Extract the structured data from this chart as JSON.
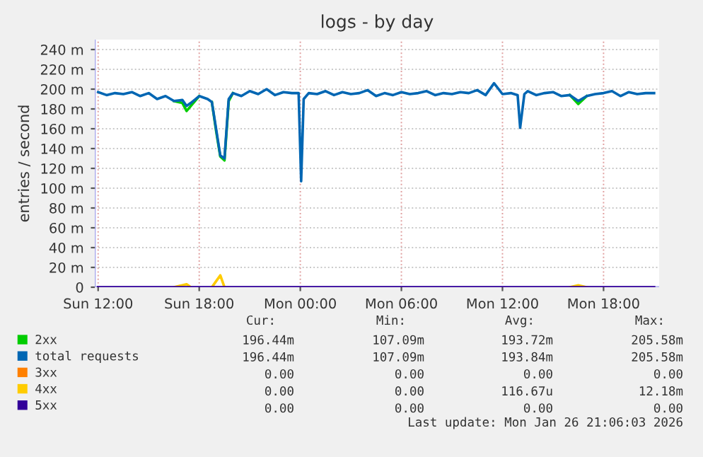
{
  "chart_data": {
    "type": "line",
    "title": "logs - by day",
    "ylabel": "entries / second",
    "x": [
      "2026-01-25T12:00",
      "2026-01-25T12:30",
      "2026-01-25T13:00",
      "2026-01-25T13:30",
      "2026-01-25T14:00",
      "2026-01-25T14:30",
      "2026-01-25T15:00",
      "2026-01-25T15:30",
      "2026-01-25T16:00",
      "2026-01-25T16:30",
      "2026-01-25T17:00",
      "2026-01-25T17:15",
      "2026-01-25T17:30",
      "2026-01-25T18:00",
      "2026-01-25T18:30",
      "2026-01-25T18:45",
      "2026-01-25T19:00",
      "2026-01-25T19:15",
      "2026-01-25T19:30",
      "2026-01-25T19:45",
      "2026-01-25T20:00",
      "2026-01-25T20:30",
      "2026-01-25T21:00",
      "2026-01-25T21:30",
      "2026-01-25T22:00",
      "2026-01-25T22:30",
      "2026-01-25T23:00",
      "2026-01-25T23:30",
      "2026-01-25T23:54",
      "2026-01-26T00:03",
      "2026-01-26T00:12",
      "2026-01-26T00:30",
      "2026-01-26T01:00",
      "2026-01-26T01:30",
      "2026-01-26T02:00",
      "2026-01-26T02:30",
      "2026-01-26T03:00",
      "2026-01-26T03:30",
      "2026-01-26T04:00",
      "2026-01-26T04:30",
      "2026-01-26T05:00",
      "2026-01-26T05:30",
      "2026-01-26T06:00",
      "2026-01-26T06:30",
      "2026-01-26T07:00",
      "2026-01-26T07:30",
      "2026-01-26T08:00",
      "2026-01-26T08:30",
      "2026-01-26T09:00",
      "2026-01-26T09:30",
      "2026-01-26T10:00",
      "2026-01-26T10:30",
      "2026-01-26T11:00",
      "2026-01-26T11:30",
      "2026-01-26T12:00",
      "2026-01-26T12:30",
      "2026-01-26T12:54",
      "2026-01-26T13:03",
      "2026-01-26T13:18",
      "2026-01-26T13:30",
      "2026-01-26T14:00",
      "2026-01-26T14:30",
      "2026-01-26T15:00",
      "2026-01-26T15:30",
      "2026-01-26T16:00",
      "2026-01-26T16:30",
      "2026-01-26T17:00",
      "2026-01-26T17:30",
      "2026-01-26T18:00",
      "2026-01-26T18:30",
      "2026-01-26T19:00",
      "2026-01-26T19:30",
      "2026-01-26T20:00",
      "2026-01-26T20:30",
      "2026-01-26T21:00"
    ],
    "series": [
      {
        "name": "2xx",
        "color": "#00cc00",
        "values": [
          null,
          null,
          null,
          null,
          null,
          null,
          null,
          null,
          null,
          188,
          186,
          178,
          183,
          193,
          null,
          187,
          158,
          132,
          128,
          188,
          196,
          null,
          null,
          null,
          null,
          null,
          null,
          null,
          null,
          null,
          null,
          null,
          null,
          null,
          null,
          null,
          null,
          null,
          null,
          null,
          null,
          null,
          null,
          null,
          null,
          null,
          null,
          null,
          null,
          null,
          null,
          null,
          null,
          null,
          null,
          null,
          null,
          null,
          null,
          null,
          null,
          null,
          null,
          null,
          194,
          185,
          193,
          null,
          null,
          null,
          null,
          null,
          null,
          null,
          null
        ]
      },
      {
        "name": "total requests",
        "color": "#0066b3",
        "values": [
          197,
          194,
          196,
          195,
          197,
          193,
          196,
          190,
          193,
          188,
          189,
          183,
          186,
          193,
          190,
          187,
          160,
          133,
          130,
          190,
          196,
          193,
          198,
          195,
          200,
          194,
          197,
          196,
          196,
          107,
          190,
          196,
          195,
          198,
          194,
          197,
          195,
          196,
          199,
          193,
          196,
          194,
          197,
          195,
          196,
          198,
          194,
          196,
          195,
          197,
          196,
          199,
          194,
          206,
          195,
          196,
          194,
          161,
          195,
          198,
          194,
          196,
          197,
          193,
          194,
          188,
          193,
          195,
          196,
          198,
          193,
          197,
          195,
          196,
          196
        ]
      },
      {
        "name": "3xx",
        "color": "#ff8000",
        "values": [
          null,
          null,
          null,
          null,
          null,
          null,
          null,
          null,
          null,
          null,
          null,
          null,
          null,
          null,
          null,
          null,
          null,
          null,
          null,
          null,
          null,
          null,
          null,
          null,
          null,
          null,
          null,
          null,
          null,
          null,
          null,
          null,
          null,
          null,
          null,
          null,
          null,
          null,
          null,
          null,
          null,
          null,
          null,
          null,
          null,
          null,
          null,
          null,
          null,
          null,
          null,
          null,
          null,
          null,
          null,
          null,
          null,
          null,
          null,
          null,
          null,
          null,
          null,
          null,
          null,
          null,
          null,
          null,
          null,
          null,
          null,
          null,
          null,
          null,
          null
        ]
      },
      {
        "name": "4xx",
        "color": "#ffcc00",
        "values": [
          null,
          null,
          null,
          null,
          null,
          null,
          null,
          null,
          null,
          0,
          2,
          3,
          0,
          null,
          null,
          0,
          6,
          12,
          0,
          null,
          null,
          null,
          null,
          null,
          null,
          null,
          null,
          null,
          null,
          null,
          null,
          null,
          null,
          null,
          null,
          null,
          null,
          null,
          null,
          null,
          null,
          null,
          null,
          null,
          null,
          null,
          null,
          null,
          null,
          null,
          null,
          null,
          null,
          null,
          null,
          null,
          null,
          null,
          null,
          null,
          null,
          null,
          null,
          null,
          0,
          2,
          0,
          null,
          null,
          null,
          null,
          null,
          null,
          null,
          null
        ]
      },
      {
        "name": "5xx",
        "color": "#330099",
        "values": [
          0,
          0,
          0,
          0,
          0,
          0,
          0,
          0,
          0,
          0,
          0,
          0,
          0,
          0,
          0,
          0,
          0,
          0,
          0,
          0,
          0,
          0,
          0,
          0,
          0,
          0,
          0,
          0,
          0,
          0,
          0,
          0,
          0,
          0,
          0,
          0,
          0,
          0,
          0,
          0,
          0,
          0,
          0,
          0,
          0,
          0,
          0,
          0,
          0,
          0,
          0,
          0,
          0,
          0,
          0,
          0,
          0,
          0,
          0,
          0,
          0,
          0,
          0,
          0,
          0,
          0,
          0,
          0,
          0,
          0,
          0,
          0,
          0,
          0,
          0
        ]
      }
    ],
    "xlim": [
      "2026-01-25T11:48",
      "2026-01-26T21:18"
    ],
    "xticks": [
      {
        "value": "2026-01-25T12:00",
        "label": "Sun 12:00"
      },
      {
        "value": "2026-01-25T18:00",
        "label": "Sun 18:00"
      },
      {
        "value": "2026-01-26T00:00",
        "label": "Mon 00:00"
      },
      {
        "value": "2026-01-26T06:00",
        "label": "Mon 06:00"
      },
      {
        "value": "2026-01-26T12:00",
        "label": "Mon 12:00"
      },
      {
        "value": "2026-01-26T18:00",
        "label": "Mon 18:00"
      }
    ],
    "ylim": [
      0,
      250
    ],
    "yticks": [
      0,
      {
        "value": 20,
        "label": "20 m"
      },
      {
        "value": 40,
        "label": "40 m"
      },
      {
        "value": 60,
        "label": "60 m"
      },
      {
        "value": 80,
        "label": "80 m"
      },
      {
        "value": 100,
        "label": "100 m"
      },
      {
        "value": 120,
        "label": "120 m"
      },
      {
        "value": 140,
        "label": "140 m"
      },
      {
        "value": 160,
        "label": "160 m"
      },
      {
        "value": 180,
        "label": "180 m"
      },
      {
        "value": 200,
        "label": "200 m"
      },
      {
        "value": 220,
        "label": "220 m"
      },
      {
        "value": 240,
        "label": "240 m"
      }
    ],
    "grid": true,
    "legend": "bottom",
    "marker": "none",
    "line_style": "solid",
    "annotations": [
      "Cur:",
      "Min:",
      "Avg:",
      "Max:",
      "196.44m",
      "107.09m",
      "193.72m",
      "205.58m",
      "196.44m",
      "107.09m",
      "193.84m",
      "205.58m",
      "0.00",
      "0.00",
      "0.00",
      "0.00",
      "0.00",
      "0.00",
      "116.67u",
      "12.18m",
      "0.00",
      "0.00",
      "0.00",
      "0.00",
      "Last update: Mon Jan 26 21:06:03 2026"
    ]
  }
}
